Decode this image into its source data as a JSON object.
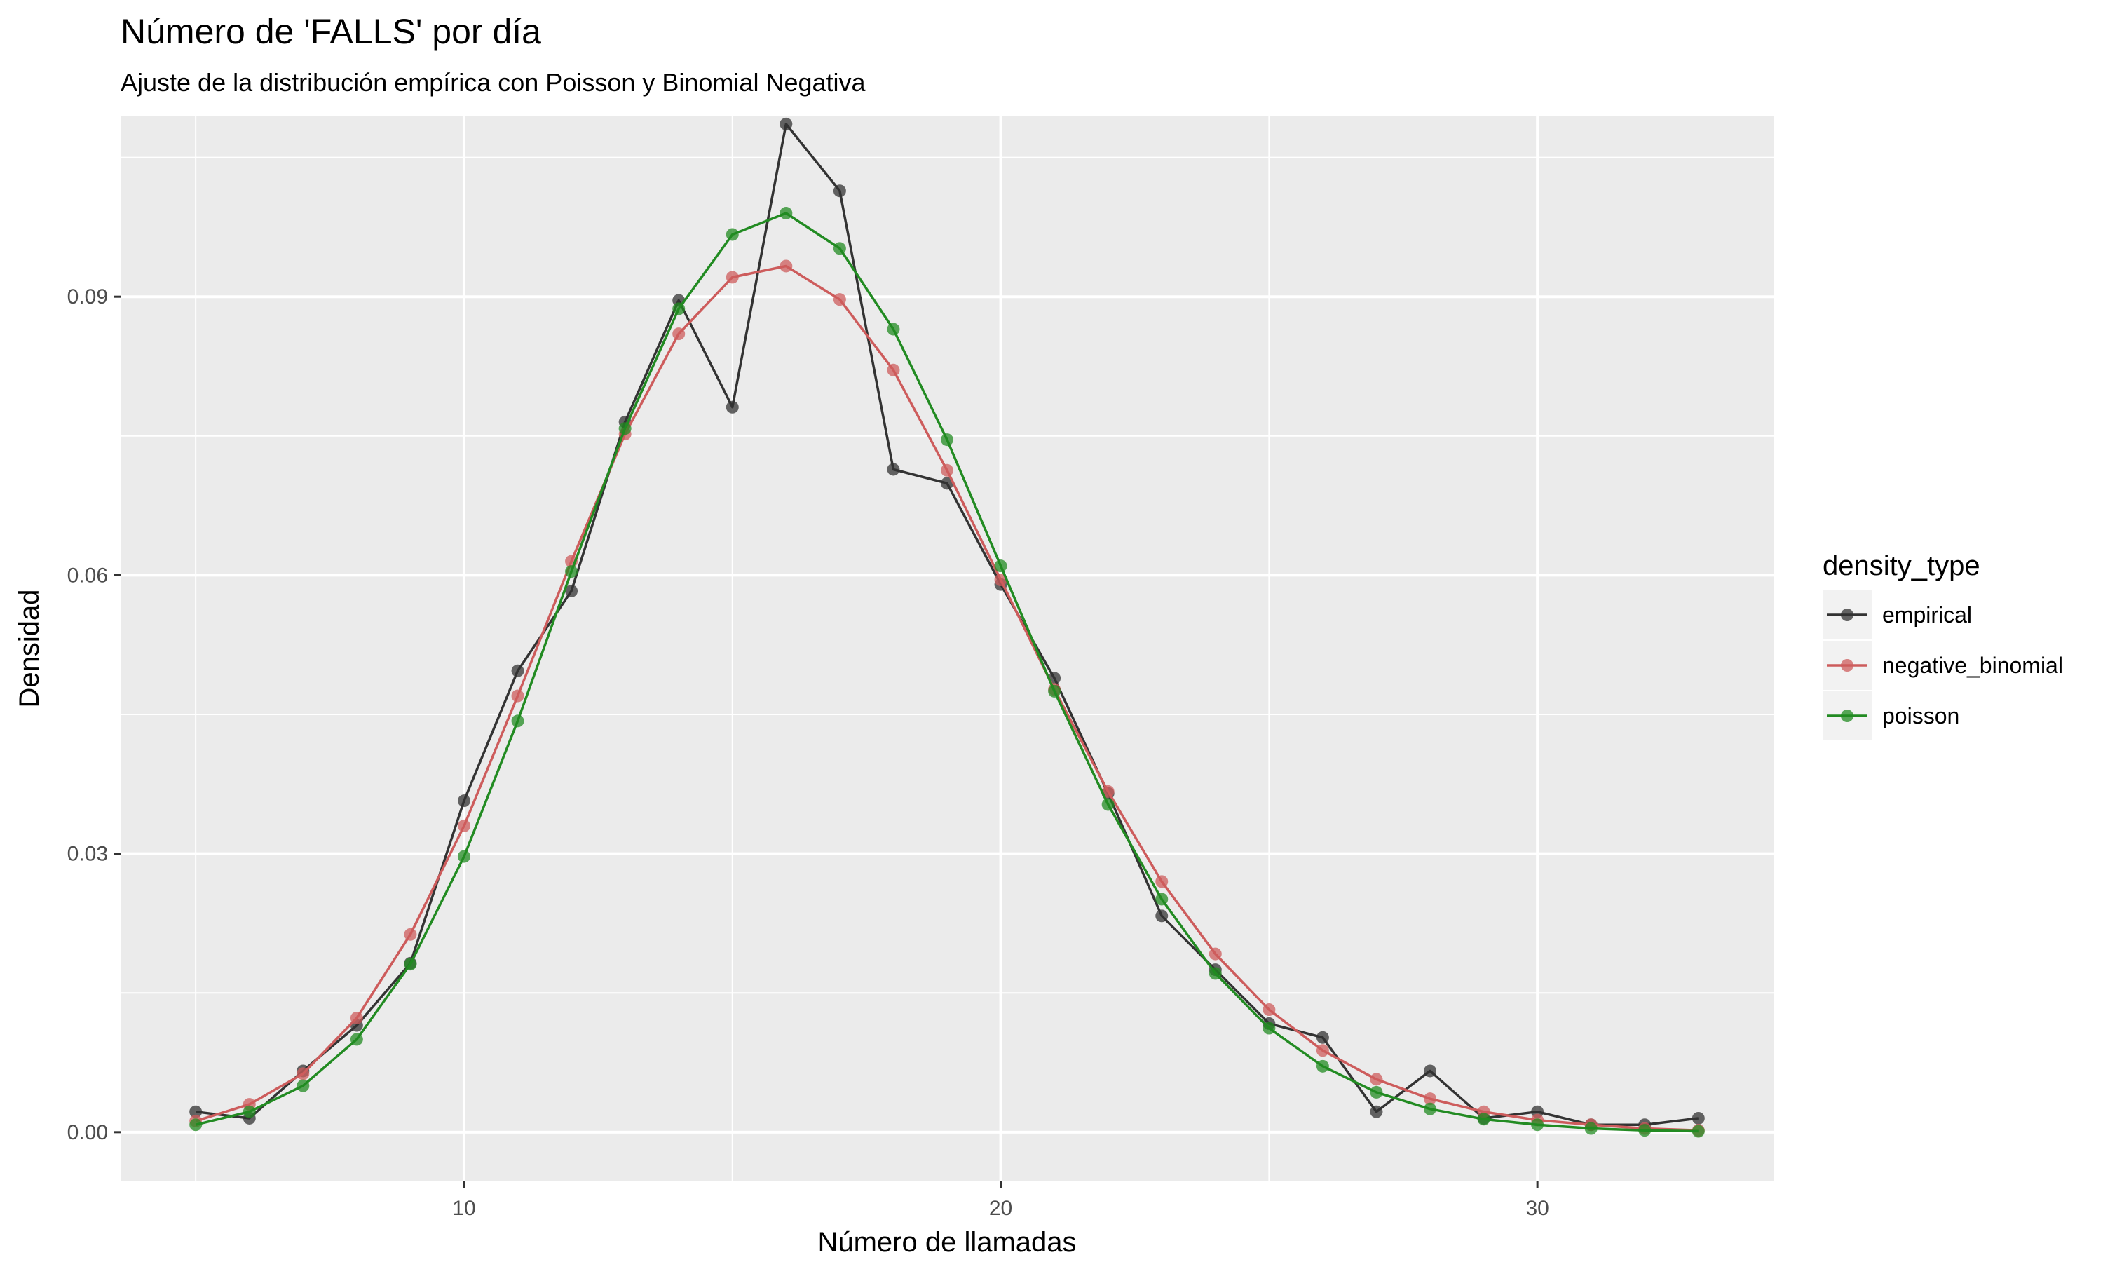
{
  "chart_data": {
    "type": "line",
    "title": "Número de 'FALLS' por día",
    "subtitle": "Ajuste de la distribución empírica con Poisson y Binomial Negativa",
    "xlabel": "Número de llamadas",
    "ylabel": "Densidad",
    "xlim": [
      3.6,
      34.4
    ],
    "ylim": [
      -0.0053,
      0.1095
    ],
    "x_ticks": [
      10,
      20,
      30
    ],
    "x_tick_labels": [
      "10",
      "20",
      "30"
    ],
    "y_ticks": [
      0,
      0.03,
      0.06,
      0.09
    ],
    "y_tick_labels": [
      "0.00",
      "0.03",
      "0.06",
      "0.09"
    ],
    "grid": true,
    "legend": {
      "title": "density_type",
      "position": "right"
    },
    "x": [
      5,
      6,
      7,
      8,
      9,
      10,
      11,
      12,
      13,
      14,
      15,
      16,
      17,
      18,
      19,
      20,
      21,
      22,
      23,
      24,
      25,
      26,
      27,
      28,
      29,
      30,
      31,
      32,
      33
    ],
    "series": [
      {
        "name": "empirical",
        "color": "#333333",
        "values": [
          0.0022,
          0.0015,
          0.0066,
          0.0115,
          0.0182,
          0.0357,
          0.0497,
          0.0583,
          0.0765,
          0.0896,
          0.0781,
          0.1086,
          0.1014,
          0.0714,
          0.0699,
          0.059,
          0.0489,
          0.0365,
          0.0233,
          0.0175,
          0.0117,
          0.0102,
          0.0022,
          0.0066,
          0.0015,
          0.0022,
          0.0008,
          0.0008,
          0.0015
        ]
      },
      {
        "name": "negative_binomial",
        "color": "#cd5c5c",
        "values": [
          0.0012,
          0.003,
          0.0063,
          0.0123,
          0.0213,
          0.033,
          0.047,
          0.0615,
          0.0752,
          0.086,
          0.0921,
          0.0933,
          0.0897,
          0.0821,
          0.0713,
          0.0595,
          0.0477,
          0.0367,
          0.027,
          0.0192,
          0.0132,
          0.0088,
          0.0057,
          0.0036,
          0.0022,
          0.0013,
          0.0008,
          0.0004,
          0.0002
        ]
      },
      {
        "name": "poisson",
        "color": "#228b22",
        "values": [
          0.0008,
          0.0022,
          0.005,
          0.01,
          0.0181,
          0.0297,
          0.0443,
          0.0604,
          0.0758,
          0.0887,
          0.0967,
          0.099,
          0.0952,
          0.0865,
          0.0746,
          0.061,
          0.0475,
          0.0353,
          0.0251,
          0.0171,
          0.0112,
          0.0071,
          0.0043,
          0.0025,
          0.0014,
          0.0008,
          0.0004,
          0.0002,
          0.0001
        ]
      }
    ]
  }
}
